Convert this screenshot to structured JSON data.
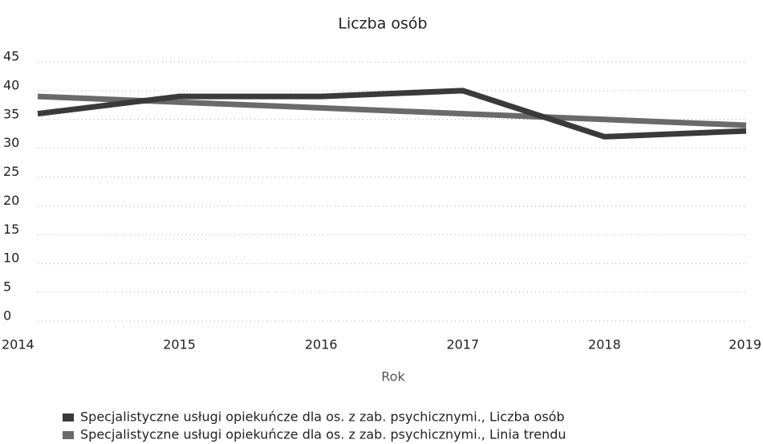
{
  "chart_data": {
    "type": "line",
    "title": "Liczba osób",
    "x_label": "Rok",
    "categories": [
      "2014",
      "2015",
      "2016",
      "2017",
      "2018",
      "2019"
    ],
    "series": [
      {
        "name": "Specjalistyczne usługi opiekuńcze dla os. z zab. psychicznymi., Liczba osób",
        "color": "#3a3a3a",
        "values": [
          36,
          39,
          39,
          40,
          32,
          33
        ]
      },
      {
        "name": "Specjalistyczne usługi opiekuńcze dla os. z zab. psychicznymi., Linia trendu",
        "color": "#6a6a6a",
        "values": [
          39,
          38,
          37,
          36,
          35,
          34
        ]
      }
    ],
    "ylim": [
      0,
      45
    ],
    "yticks": [
      0,
      5,
      10,
      15,
      20,
      25,
      30,
      35,
      40,
      45
    ],
    "grid": true
  }
}
